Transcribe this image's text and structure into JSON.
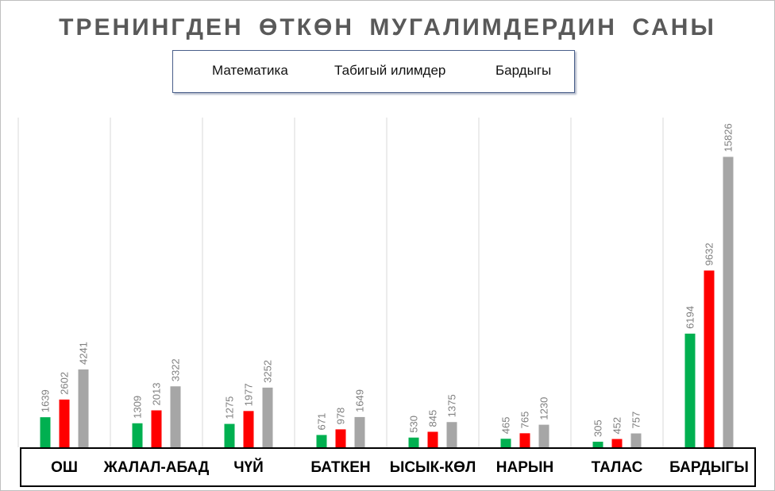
{
  "chart_data": {
    "type": "bar",
    "title": "ТРЕНИНГДЕН  ӨТКӨН  МУГАЛИМДЕРДИН  САНЫ",
    "legend_position": "top",
    "categories": [
      "ОШ",
      "ЖАЛАЛ-АБАД",
      "ЧҮЙ",
      "БАТКЕН",
      "ЫСЫК-КӨЛ",
      "НАРЫН",
      "ТАЛАС",
      "БАРДЫГЫ"
    ],
    "series": [
      {
        "name": "Математика",
        "color": "#00b050",
        "values": [
          1639,
          1309,
          1275,
          671,
          530,
          465,
          305,
          6194
        ]
      },
      {
        "name": "Табигый илимдер",
        "color": "#ff0000",
        "values": [
          2602,
          2013,
          1977,
          978,
          845,
          765,
          452,
          9632
        ]
      },
      {
        "name": "Бардыгы",
        "color": "#a6a6a6",
        "values": [
          4241,
          3322,
          3252,
          1649,
          1375,
          1230,
          757,
          15826
        ]
      }
    ],
    "ylim": [
      0,
      16000
    ],
    "grid": "vertical category separators",
    "data_labels": true,
    "data_label_color": "#7f7f7f"
  }
}
